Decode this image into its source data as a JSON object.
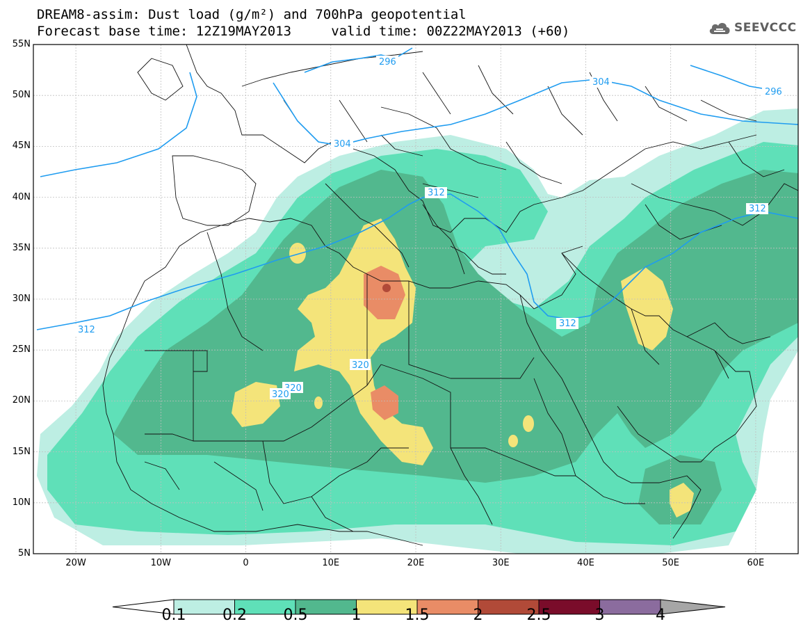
{
  "header": {
    "title_line1": "DREAM8-assim: Dust load (g/m²) and 700hPa geopotential",
    "title_line2": "Forecast base time: 12Z19MAY2013     valid time: 00Z22MAY2013 (+60)",
    "logo_text": "SEEVCCC",
    "logo_icon": "cloud-icon"
  },
  "map": {
    "lon_range": [
      -25,
      65
    ],
    "lat_range": [
      5,
      55
    ],
    "lon_ticks": [
      "20W",
      "10W",
      "0",
      "10E",
      "20E",
      "30E",
      "40E",
      "50E",
      "60E"
    ],
    "lat_ticks": [
      "55N",
      "50N",
      "45N",
      "40N",
      "35N",
      "30N",
      "25N",
      "20N",
      "15N",
      "10N",
      "5N"
    ],
    "grid": true,
    "background_color": "#ffffff"
  },
  "geopotential_contours": [
    {
      "label": "296",
      "color": "#1f9cf0"
    },
    {
      "label": "304",
      "color": "#1f9cf0"
    },
    {
      "label": "312",
      "color": "#1f9cf0"
    },
    {
      "label": "320",
      "color": "#1f9cf0"
    }
  ],
  "colorbar": {
    "ticks": [
      "0.1",
      "0.2",
      "0.5",
      "1",
      "1.5",
      "2",
      "2.5",
      "3",
      "4"
    ],
    "colors": [
      "#bdeee3",
      "#5fe0b8",
      "#52b88e",
      "#f4e47a",
      "#e98c66",
      "#b14a38",
      "#7a0c2a",
      "#8b6c9e",
      "#a6a6a6"
    ],
    "under_color": "#ffffff"
  }
}
